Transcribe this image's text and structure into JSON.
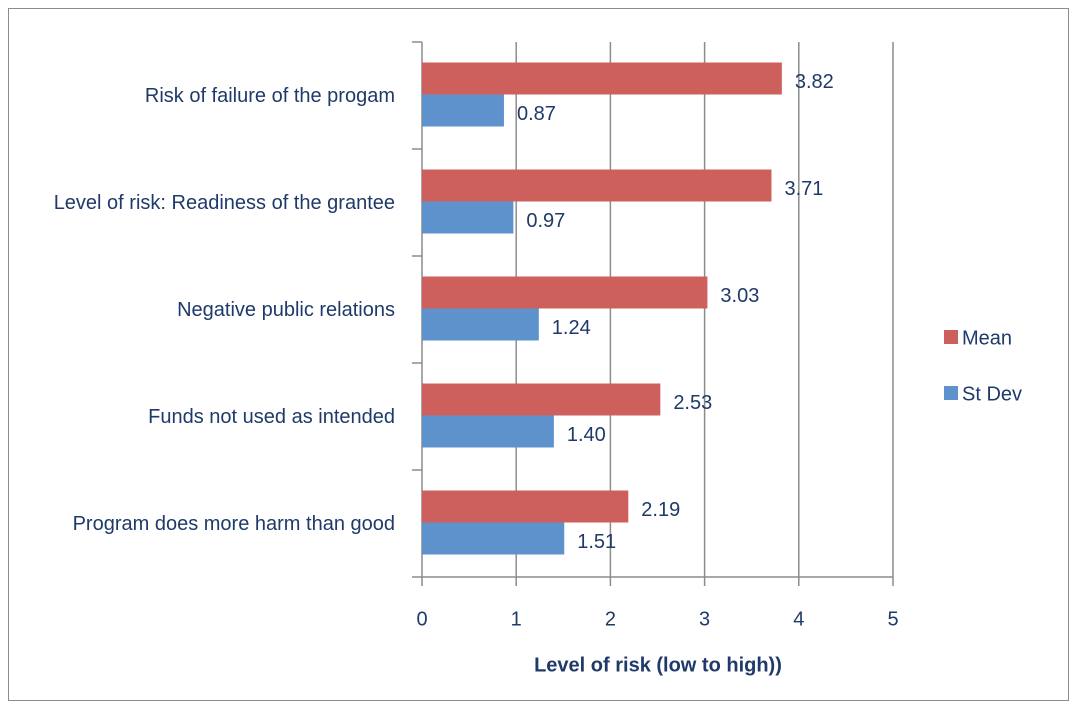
{
  "chart_data": {
    "type": "bar",
    "orientation": "horizontal",
    "xlabel": "Level of risk (low to high))",
    "categories": [
      "Risk of failure of the progam",
      "Level of risk: Readiness of the grantee",
      "Negative public relations",
      "Funds not used as intended",
      "Program does more harm than good"
    ],
    "series": [
      {
        "name": "Mean",
        "color": "#cd605c",
        "values": [
          3.82,
          3.71,
          3.03,
          2.53,
          2.19
        ],
        "value_labels": [
          "3.82",
          "3.71",
          "3.03",
          "2.53",
          "2.19"
        ]
      },
      {
        "name": "St Dev",
        "color": "#5e92cc",
        "values": [
          0.87,
          0.97,
          1.24,
          1.4,
          1.51
        ],
        "value_labels": [
          "0.87",
          "0.97",
          "1.24",
          "1.40",
          "1.51"
        ]
      }
    ],
    "xlim": [
      0,
      5
    ],
    "xticks": [
      0,
      1,
      2,
      3,
      4,
      5
    ],
    "grid": true,
    "legend": "right"
  }
}
